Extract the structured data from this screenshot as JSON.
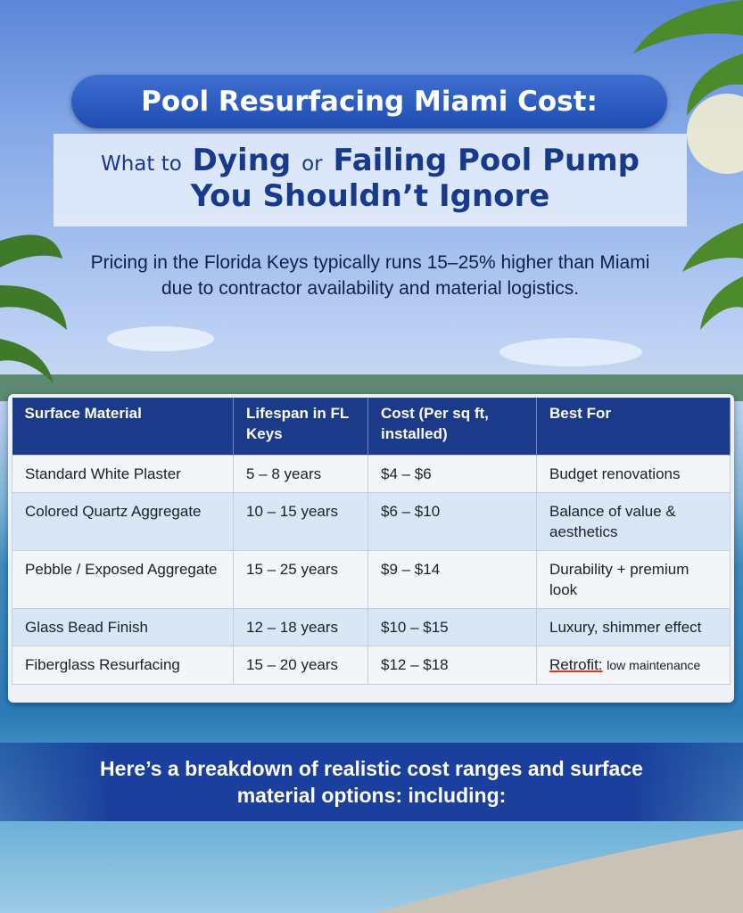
{
  "header": {
    "title": "Pool Resurfacing Miami Cost:",
    "subtitle": {
      "lead": "What to",
      "emphasis1": "Dying",
      "joiner": "or",
      "emphasis2": "Failing Pool Pump",
      "line2": "You Shouldn’t Ignore"
    }
  },
  "intro": "Pricing in the Florida Keys typically runs 15–25% higher than Miami due to contractor availability and material logistics.",
  "table": {
    "headers": [
      "Surface Material",
      "Lifespan in FL Keys",
      "Cost (Per sq ft, installed)",
      "Best For"
    ],
    "rows": [
      [
        "Standard White Plaster",
        "5 – 8 years",
        "$4 – $6",
        "Budget renovations"
      ],
      [
        "Colored Quartz Aggregate",
        "10 – 15 years",
        "$6 – $10",
        "Balance of value & aesthetics"
      ],
      [
        "Pebble / Exposed Aggregate",
        "15 – 25 years",
        "$9 – $14",
        "Durability + premium look"
      ],
      [
        "Glass Bead Finish",
        "12 – 18 years",
        "$10 – $15",
        "Luxury, shimmer effect"
      ],
      [
        "Fiberglass Resurfacing",
        "15 – 20 years",
        "$12 – $18",
        {
          "flagged": "Retrofit:",
          "rest": "low maintenance"
        }
      ]
    ]
  },
  "footer": "Here’s a breakdown of realistic cost ranges and surface material options: including:"
}
